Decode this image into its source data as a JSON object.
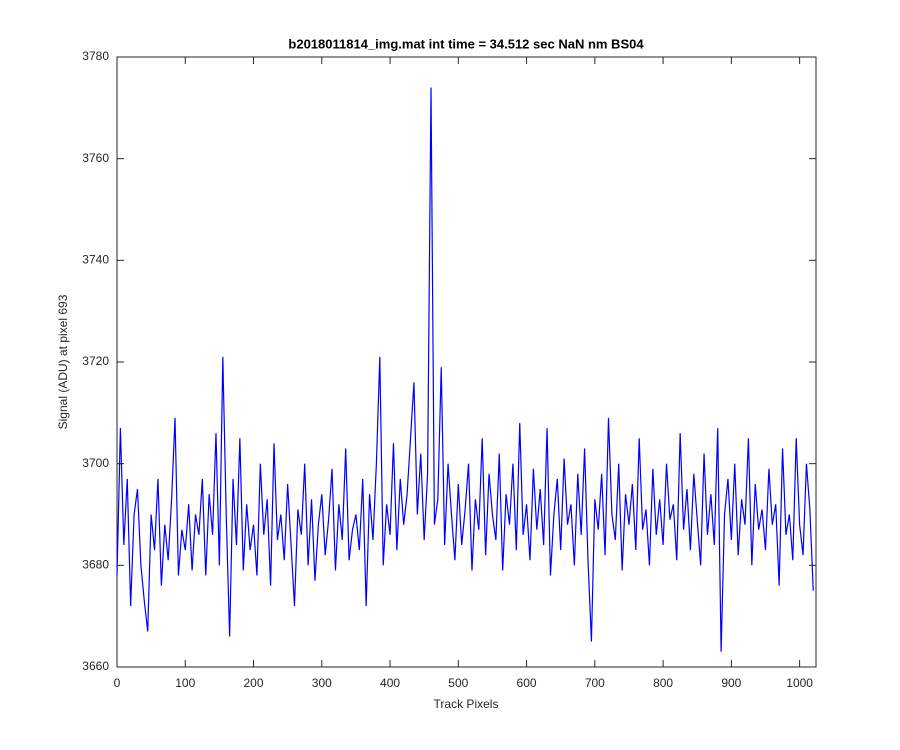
{
  "chart_data": {
    "type": "line",
    "title": "b2018011814_img.mat int time = 34.512 sec  NaN nm BS04",
    "x_label": "Track Pixels",
    "y_label": "Signal (ADU) at pixel 693",
    "x": [
      0,
      5,
      10,
      15,
      20,
      25,
      30,
      35,
      40,
      45,
      50,
      55,
      60,
      65,
      70,
      75,
      80,
      85,
      90,
      95,
      100,
      105,
      110,
      115,
      120,
      125,
      130,
      135,
      140,
      145,
      150,
      155,
      160,
      165,
      170,
      175,
      180,
      185,
      190,
      195,
      200,
      205,
      210,
      215,
      220,
      225,
      230,
      235,
      240,
      245,
      250,
      255,
      260,
      265,
      270,
      275,
      280,
      285,
      290,
      295,
      300,
      305,
      310,
      315,
      320,
      325,
      330,
      335,
      340,
      345,
      350,
      355,
      360,
      365,
      370,
      375,
      380,
      385,
      390,
      395,
      400,
      405,
      410,
      415,
      420,
      425,
      430,
      435,
      440,
      445,
      450,
      455,
      460,
      465,
      470,
      475,
      480,
      485,
      490,
      495,
      500,
      505,
      510,
      515,
      520,
      525,
      530,
      535,
      540,
      545,
      550,
      555,
      560,
      565,
      570,
      575,
      580,
      585,
      590,
      595,
      600,
      605,
      610,
      615,
      620,
      625,
      630,
      635,
      640,
      645,
      650,
      655,
      660,
      665,
      670,
      675,
      680,
      685,
      690,
      695,
      700,
      705,
      710,
      715,
      720,
      725,
      730,
      735,
      740,
      745,
      750,
      755,
      760,
      765,
      770,
      775,
      780,
      785,
      790,
      795,
      800,
      805,
      810,
      815,
      820,
      825,
      830,
      835,
      840,
      845,
      850,
      855,
      860,
      865,
      870,
      875,
      880,
      885,
      890,
      895,
      900,
      905,
      910,
      915,
      920,
      925,
      930,
      935,
      940,
      945,
      950,
      955,
      960,
      965,
      970,
      975,
      980,
      985,
      990,
      995,
      1000,
      1005,
      1010,
      1015,
      1020
    ],
    "values": [
      3678,
      3707,
      3684,
      3697,
      3672,
      3690,
      3695,
      3680,
      3673,
      3667,
      3690,
      3683,
      3697,
      3676,
      3688,
      3681,
      3693,
      3709,
      3678,
      3687,
      3683,
      3692,
      3679,
      3690,
      3686,
      3697,
      3678,
      3694,
      3686,
      3706,
      3680,
      3721,
      3690,
      3666,
      3697,
      3684,
      3705,
      3679,
      3692,
      3683,
      3688,
      3678,
      3700,
      3686,
      3693,
      3676,
      3704,
      3685,
      3690,
      3681,
      3696,
      3684,
      3672,
      3691,
      3686,
      3700,
      3680,
      3693,
      3677,
      3688,
      3694,
      3682,
      3689,
      3699,
      3679,
      3692,
      3685,
      3703,
      3681,
      3687,
      3690,
      3683,
      3697,
      3672,
      3694,
      3685,
      3700,
      3721,
      3680,
      3692,
      3686,
      3704,
      3683,
      3697,
      3688,
      3694,
      3705,
      3716,
      3690,
      3702,
      3685,
      3698,
      3774,
      3688,
      3693,
      3719,
      3684,
      3700,
      3690,
      3681,
      3696,
      3684,
      3691,
      3700,
      3679,
      3693,
      3687,
      3705,
      3682,
      3698,
      3690,
      3685,
      3702,
      3679,
      3694,
      3688,
      3700,
      3683,
      3708,
      3686,
      3692,
      3681,
      3699,
      3687,
      3695,
      3684,
      3707,
      3678,
      3690,
      3697,
      3683,
      3701,
      3688,
      3692,
      3680,
      3698,
      3686,
      3703,
      3681,
      3665,
      3693,
      3687,
      3698,
      3682,
      3709,
      3690,
      3685,
      3700,
      3679,
      3694,
      3688,
      3696,
      3683,
      3705,
      3687,
      3691,
      3680,
      3699,
      3686,
      3693,
      3684,
      3700,
      3689,
      3692,
      3681,
      3706,
      3687,
      3695,
      3683,
      3698,
      3689,
      3680,
      3702,
      3686,
      3694,
      3684,
      3707,
      3663,
      3690,
      3697,
      3685,
      3700,
      3682,
      3693,
      3688,
      3705,
      3680,
      3696,
      3687,
      3691,
      3683,
      3699,
      3688,
      3692,
      3676,
      3703,
      3686,
      3690,
      3681,
      3705,
      3688,
      3682,
      3700,
      3691,
      3675
    ],
    "color": "#0000ff",
    "xlim": [
      0,
      1024
    ],
    "xticks": [
      0,
      100,
      200,
      300,
      400,
      500,
      600,
      700,
      800,
      900,
      1000
    ],
    "ylim": [
      3660,
      3780
    ],
    "yticks": [
      3660,
      3680,
      3700,
      3720,
      3740,
      3760,
      3780
    ]
  }
}
